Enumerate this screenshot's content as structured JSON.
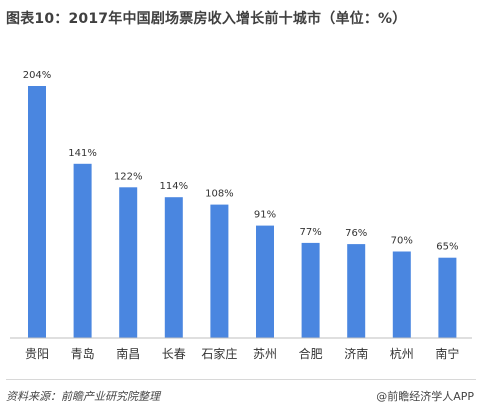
{
  "title": "图表10：2017年中国剧场票房收入增长前十城市（单位：%）",
  "footer": {
    "source": "资料来源：前瞻产业研究院整理",
    "brand": "@前瞻经济学人APP"
  },
  "colors": {
    "bar": "#4a86e0",
    "axis": "#bfbfbf",
    "label": "#333333"
  },
  "chart_data": {
    "type": "bar",
    "title": "图表10：2017年中国剧场票房收入增长前十城市（单位：%）",
    "xlabel": "",
    "ylabel": "",
    "ylim": [
      0,
      204
    ],
    "grid": false,
    "legend": "none",
    "categories": [
      "贵阳",
      "青岛",
      "南昌",
      "长春",
      "石家庄",
      "苏州",
      "合肥",
      "济南",
      "杭州",
      "南宁"
    ],
    "values": [
      204,
      141,
      122,
      114,
      108,
      91,
      77,
      76,
      70,
      65
    ],
    "value_labels": [
      "204%",
      "141%",
      "122%",
      "114%",
      "108%",
      "91%",
      "77%",
      "76%",
      "70%",
      "65%"
    ]
  }
}
